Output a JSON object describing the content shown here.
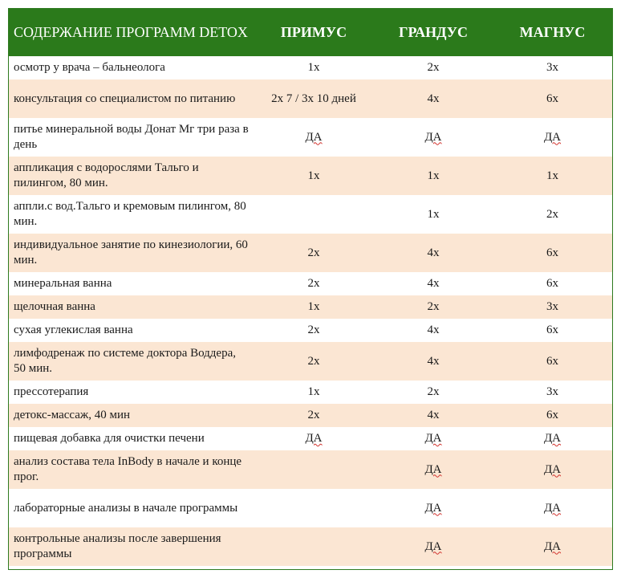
{
  "header": {
    "title": "СОДЕРЖАНИЕ ПРОГРАММ DETOX",
    "col_primus": "ПРИМУС",
    "col_grandus": "ГРАНДУС",
    "col_magnus": "МАГНУС"
  },
  "rows": [
    {
      "label": "осмотр у врача – бальнеолога",
      "primus": "1х",
      "grandus": "2х",
      "magnus": "3х"
    },
    {
      "label": "консультация со специалистом по питанию",
      "primus": "2х 7 / 3х 10 дней",
      "grandus": "4х",
      "magnus": "6х"
    },
    {
      "label": "питье минеральной воды Донат Мг три раза в день",
      "primus": "ДА",
      "grandus": "ДА",
      "magnus": "ДА"
    },
    {
      "label": "аппликация с водорослями Тальго и пилингом, 80 мин.",
      "primus": "1х",
      "grandus": "1х",
      "magnus": "1х"
    },
    {
      "label": "аппли.с вод.Тальго и кремовым пилингом, 80 мин.",
      "primus": "",
      "grandus": "1х",
      "magnus": "2х"
    },
    {
      "label": "индивидуальное занятие по кинезиологии, 60 мин.",
      "primus": "2х",
      "grandus": "4х",
      "magnus": "6х"
    },
    {
      "label": "минеральная ванна",
      "primus": "2х",
      "grandus": "4х",
      "magnus": "6х"
    },
    {
      "label": "щелочная ванна",
      "primus": "1х",
      "grandus": "2х",
      "magnus": "3х"
    },
    {
      "label": "сухая углекислая ванна",
      "primus": "2х",
      "grandus": "4х",
      "magnus": "6х"
    },
    {
      "label": "лимфодренаж по системе доктора Воддера, 50 мин.",
      "primus": "2х",
      "grandus": "4х",
      "magnus": "6х"
    },
    {
      "label": "прессотерапия",
      "primus": "1х",
      "grandus": "2х",
      "magnus": "3х"
    },
    {
      "label": "детокс-массаж, 40 мин",
      "primus": "2х",
      "grandus": "4х",
      "magnus": "6х"
    },
    {
      "label": "пищевая добавка для очистки печени",
      "primus": "ДА",
      "grandus": "ДА",
      "magnus": "ДА"
    },
    {
      "label": "анализ состава тела InBody в начале и конце прог.",
      "primus": "",
      "grandus": "ДА",
      "magnus": "ДА"
    },
    {
      "label": "лабораторные анализы в начале программы",
      "primus": "",
      "grandus": "ДА",
      "magnus": "ДА"
    },
    {
      "label": "контрольные анализы после завершения программы",
      "primus": "",
      "grandus": "ДА",
      "magnus": "ДА"
    }
  ],
  "colors": {
    "header_bg": "#2b7a1b",
    "header_text": "#ffffff",
    "row_alt_bg": "#fbe6d3",
    "spellcheck_underline": "#d2322d"
  }
}
